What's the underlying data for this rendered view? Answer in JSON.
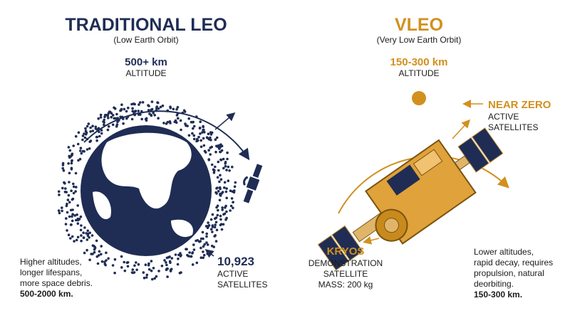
{
  "left": {
    "title": "TRADITIONAL LEO",
    "subtitle": "(Low Earth Orbit)",
    "altitude_value": "500+ km",
    "altitude_label": "ALTITUDE",
    "count": "10,923",
    "count_lines": [
      "ACTIVE",
      "SATELLITES"
    ],
    "note": [
      "Higher altitudes,",
      "longer lifespans,",
      "more space debris."
    ],
    "note_range": "500-2000 km."
  },
  "right": {
    "title": "VLEO",
    "subtitle": "(Very Low Earth Orbit)",
    "altitude_value": "150-300 km",
    "altitude_label": "ALTITUDE",
    "count": "NEAR ZERO",
    "count_lines": [
      "ACTIVE",
      "SATELLITES"
    ],
    "satellite_name": "KRYOS",
    "satellite_lines": [
      "DEMONSTRATION",
      "SATELLITE",
      "MASS: 200 kg"
    ],
    "note": [
      "Lower altitudes,",
      "rapid decay, requires",
      "propulsion, natural",
      "deorbiting."
    ],
    "note_range": "150-300 km."
  }
}
